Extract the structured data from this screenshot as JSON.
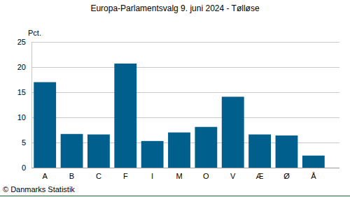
{
  "chart_data": {
    "type": "bar",
    "title": "Europa-Parlamentsvalg 9. juni 2024 - Tølløse",
    "ylabel": "Pct.",
    "categories": [
      "A",
      "B",
      "C",
      "F",
      "I",
      "M",
      "O",
      "V",
      "Æ",
      "Ø",
      "Å"
    ],
    "values": [
      17.0,
      6.7,
      6.6,
      20.7,
      5.3,
      7.0,
      8.1,
      14.1,
      6.6,
      6.4,
      2.4
    ],
    "color": "#005f8c",
    "ylim": [
      0,
      25
    ],
    "yticks": [
      0,
      5,
      10,
      15,
      20,
      25
    ],
    "grid": true,
    "source": "© Danmarks Statistik"
  }
}
